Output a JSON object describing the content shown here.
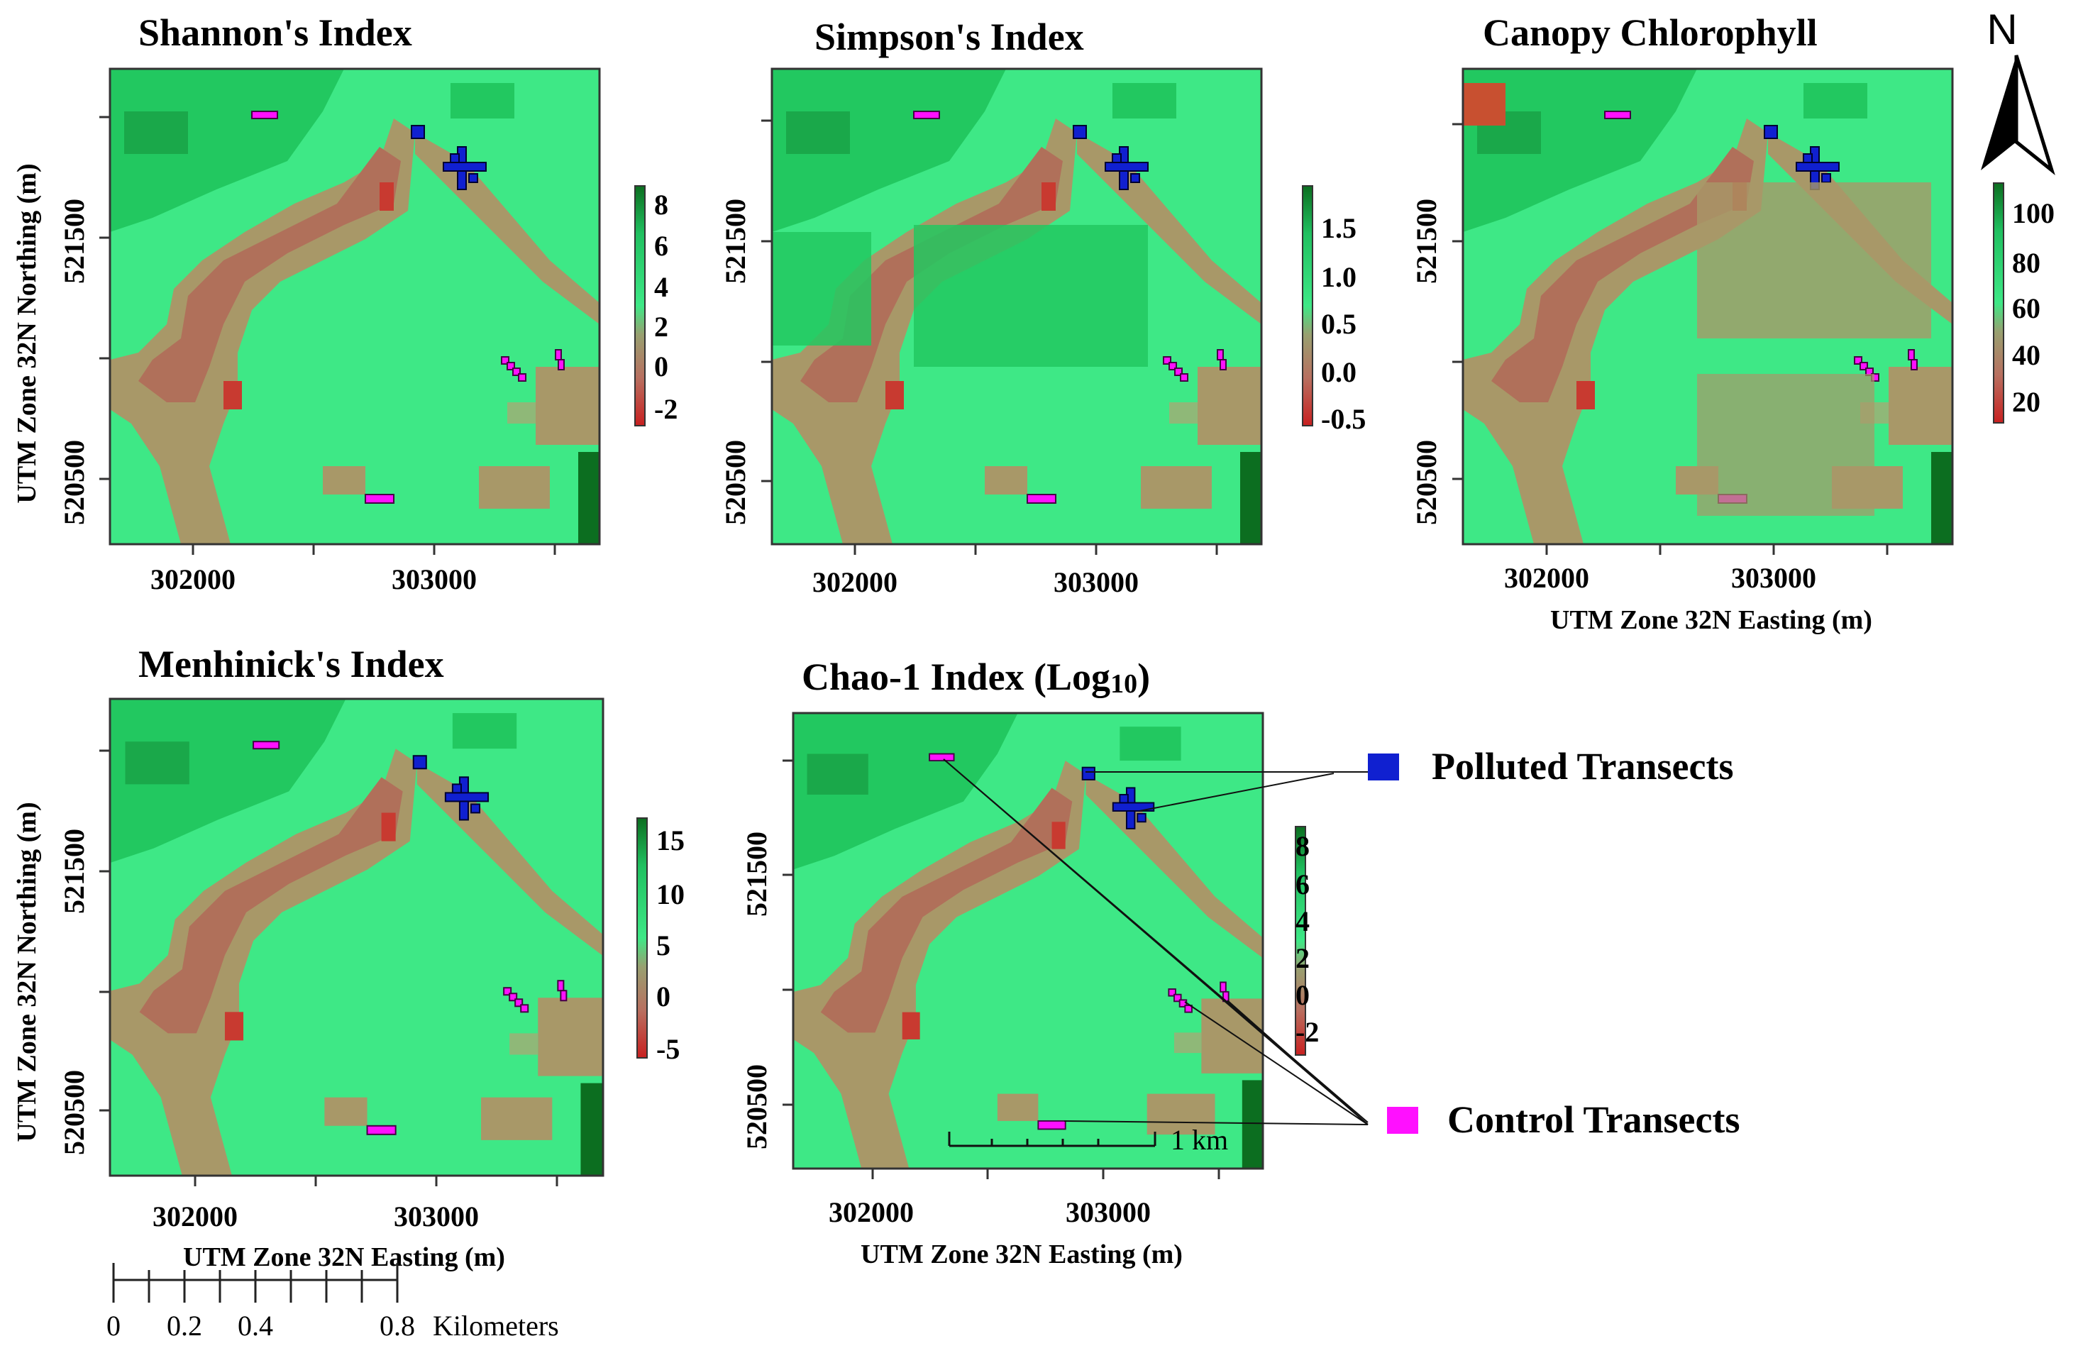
{
  "figure": {
    "north_label": "N",
    "scalebar": {
      "ticks": [
        "0",
        "0.2",
        "0.4",
        "0.8"
      ],
      "unit": "Kilometers"
    },
    "inset_scale_label": "1 km",
    "legend": [
      {
        "label": "Polluted Transects",
        "color": "#1020d0"
      },
      {
        "label": "Control Transects",
        "color": "#ff10ff"
      }
    ],
    "colors": {
      "low": "#d03030",
      "mid": "#a89868",
      "high": "#3ee886",
      "top": "#0c6e20"
    },
    "panels": [
      {
        "title": "Shannon's Index",
        "legend_ticks": [
          "8",
          "6",
          "4",
          "2",
          "0",
          "-2"
        ],
        "x_ticks": [
          "302000",
          "303000"
        ],
        "y_ticks": [
          "521500",
          "520500"
        ],
        "x_label": "",
        "y_label": "UTM Zone 32N Northing (m)"
      },
      {
        "title": "Simpson's Index",
        "legend_ticks": [
          "1.5",
          "1.0",
          "0.5",
          "0.0",
          "-0.5"
        ],
        "x_ticks": [
          "302000",
          "303000"
        ],
        "y_ticks": [
          "521500",
          "520500"
        ],
        "x_label": "",
        "y_label": ""
      },
      {
        "title": "Canopy Chlorophyll",
        "legend_ticks": [
          "100",
          "80",
          "60",
          "40",
          "20"
        ],
        "x_ticks": [
          "302000",
          "303000"
        ],
        "y_ticks": [
          "521500",
          "520500"
        ],
        "x_label": "UTM Zone 32N Easting (m)",
        "y_label": ""
      },
      {
        "title": "Menhinick's Index",
        "legend_ticks": [
          "15",
          "10",
          "5",
          "0",
          "-5"
        ],
        "x_ticks": [
          "302000",
          "303000"
        ],
        "y_ticks": [
          "521500",
          "520500"
        ],
        "x_label": "UTM Zone 32N Easting (m)",
        "y_label": "UTM Zone 32N Northing (m)"
      },
      {
        "title": "Chao-1 Index (Log",
        "title_sub": "10",
        "title_end": ")",
        "legend_ticks": [
          "8",
          "6",
          "4",
          "2",
          "0",
          "-2"
        ],
        "x_ticks": [
          "302000",
          "303000"
        ],
        "y_ticks": [
          "521500",
          "520500"
        ],
        "x_label": "UTM Zone 32N Easting (m)",
        "y_label": ""
      }
    ]
  }
}
